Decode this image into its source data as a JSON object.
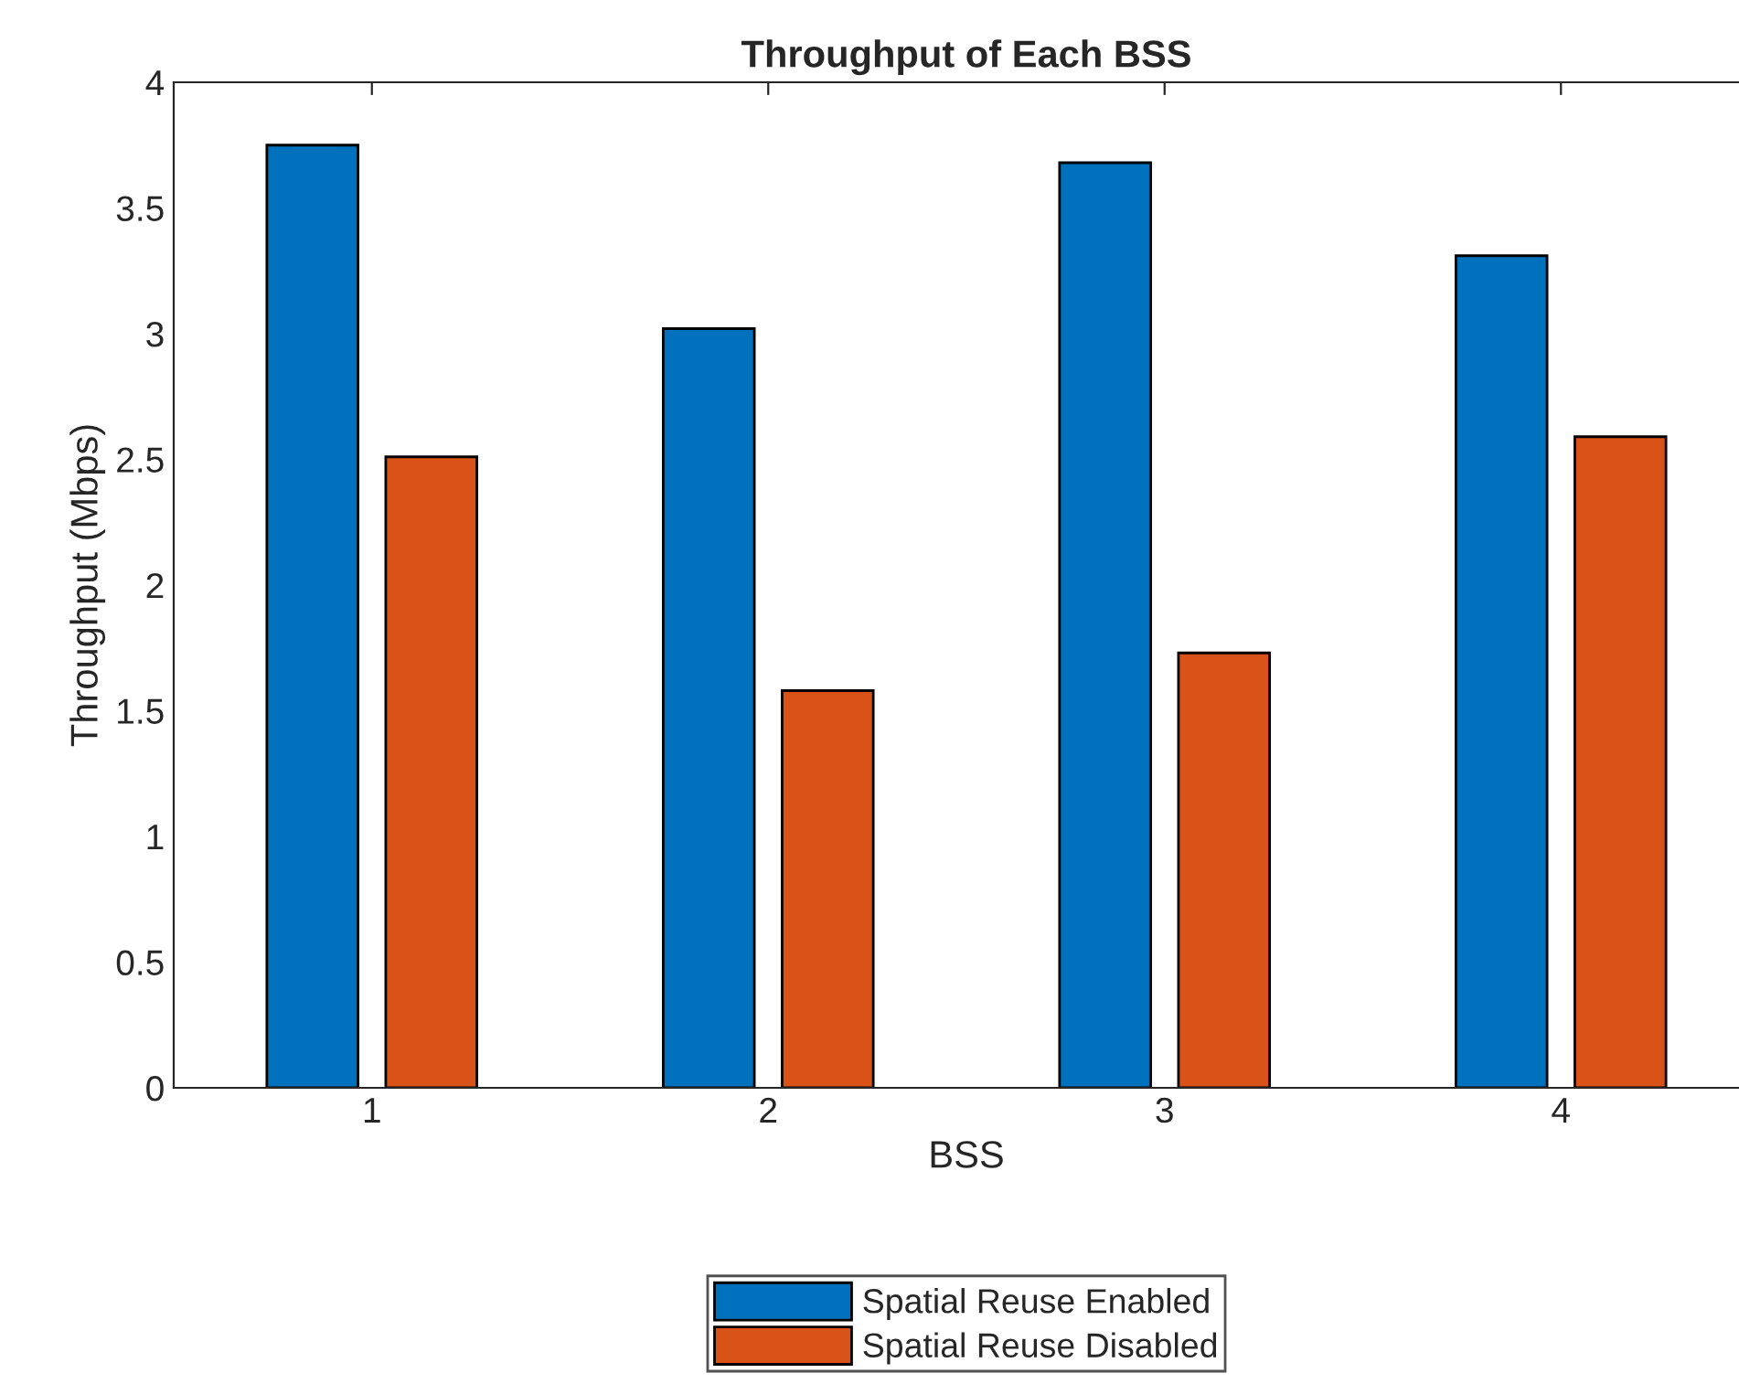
{
  "chart_data": {
    "type": "bar",
    "title": "Throughput of Each BSS",
    "xlabel": "BSS",
    "ylabel": "Throughput (Mbps)",
    "categories": [
      "1",
      "2",
      "3",
      "4"
    ],
    "series": [
      {
        "name": "Spatial Reuse Enabled",
        "color": "#0072bd",
        "values": [
          3.75,
          3.02,
          3.68,
          3.31
        ]
      },
      {
        "name": "Spatial Reuse Disabled",
        "color": "#d95319",
        "values": [
          2.51,
          1.58,
          1.73,
          2.59
        ]
      }
    ],
    "ylim": [
      0,
      4
    ],
    "yticks": [
      0,
      0.5,
      1,
      1.5,
      2,
      2.5,
      3,
      3.5,
      4
    ],
    "grid": false,
    "legend": "bottom"
  }
}
